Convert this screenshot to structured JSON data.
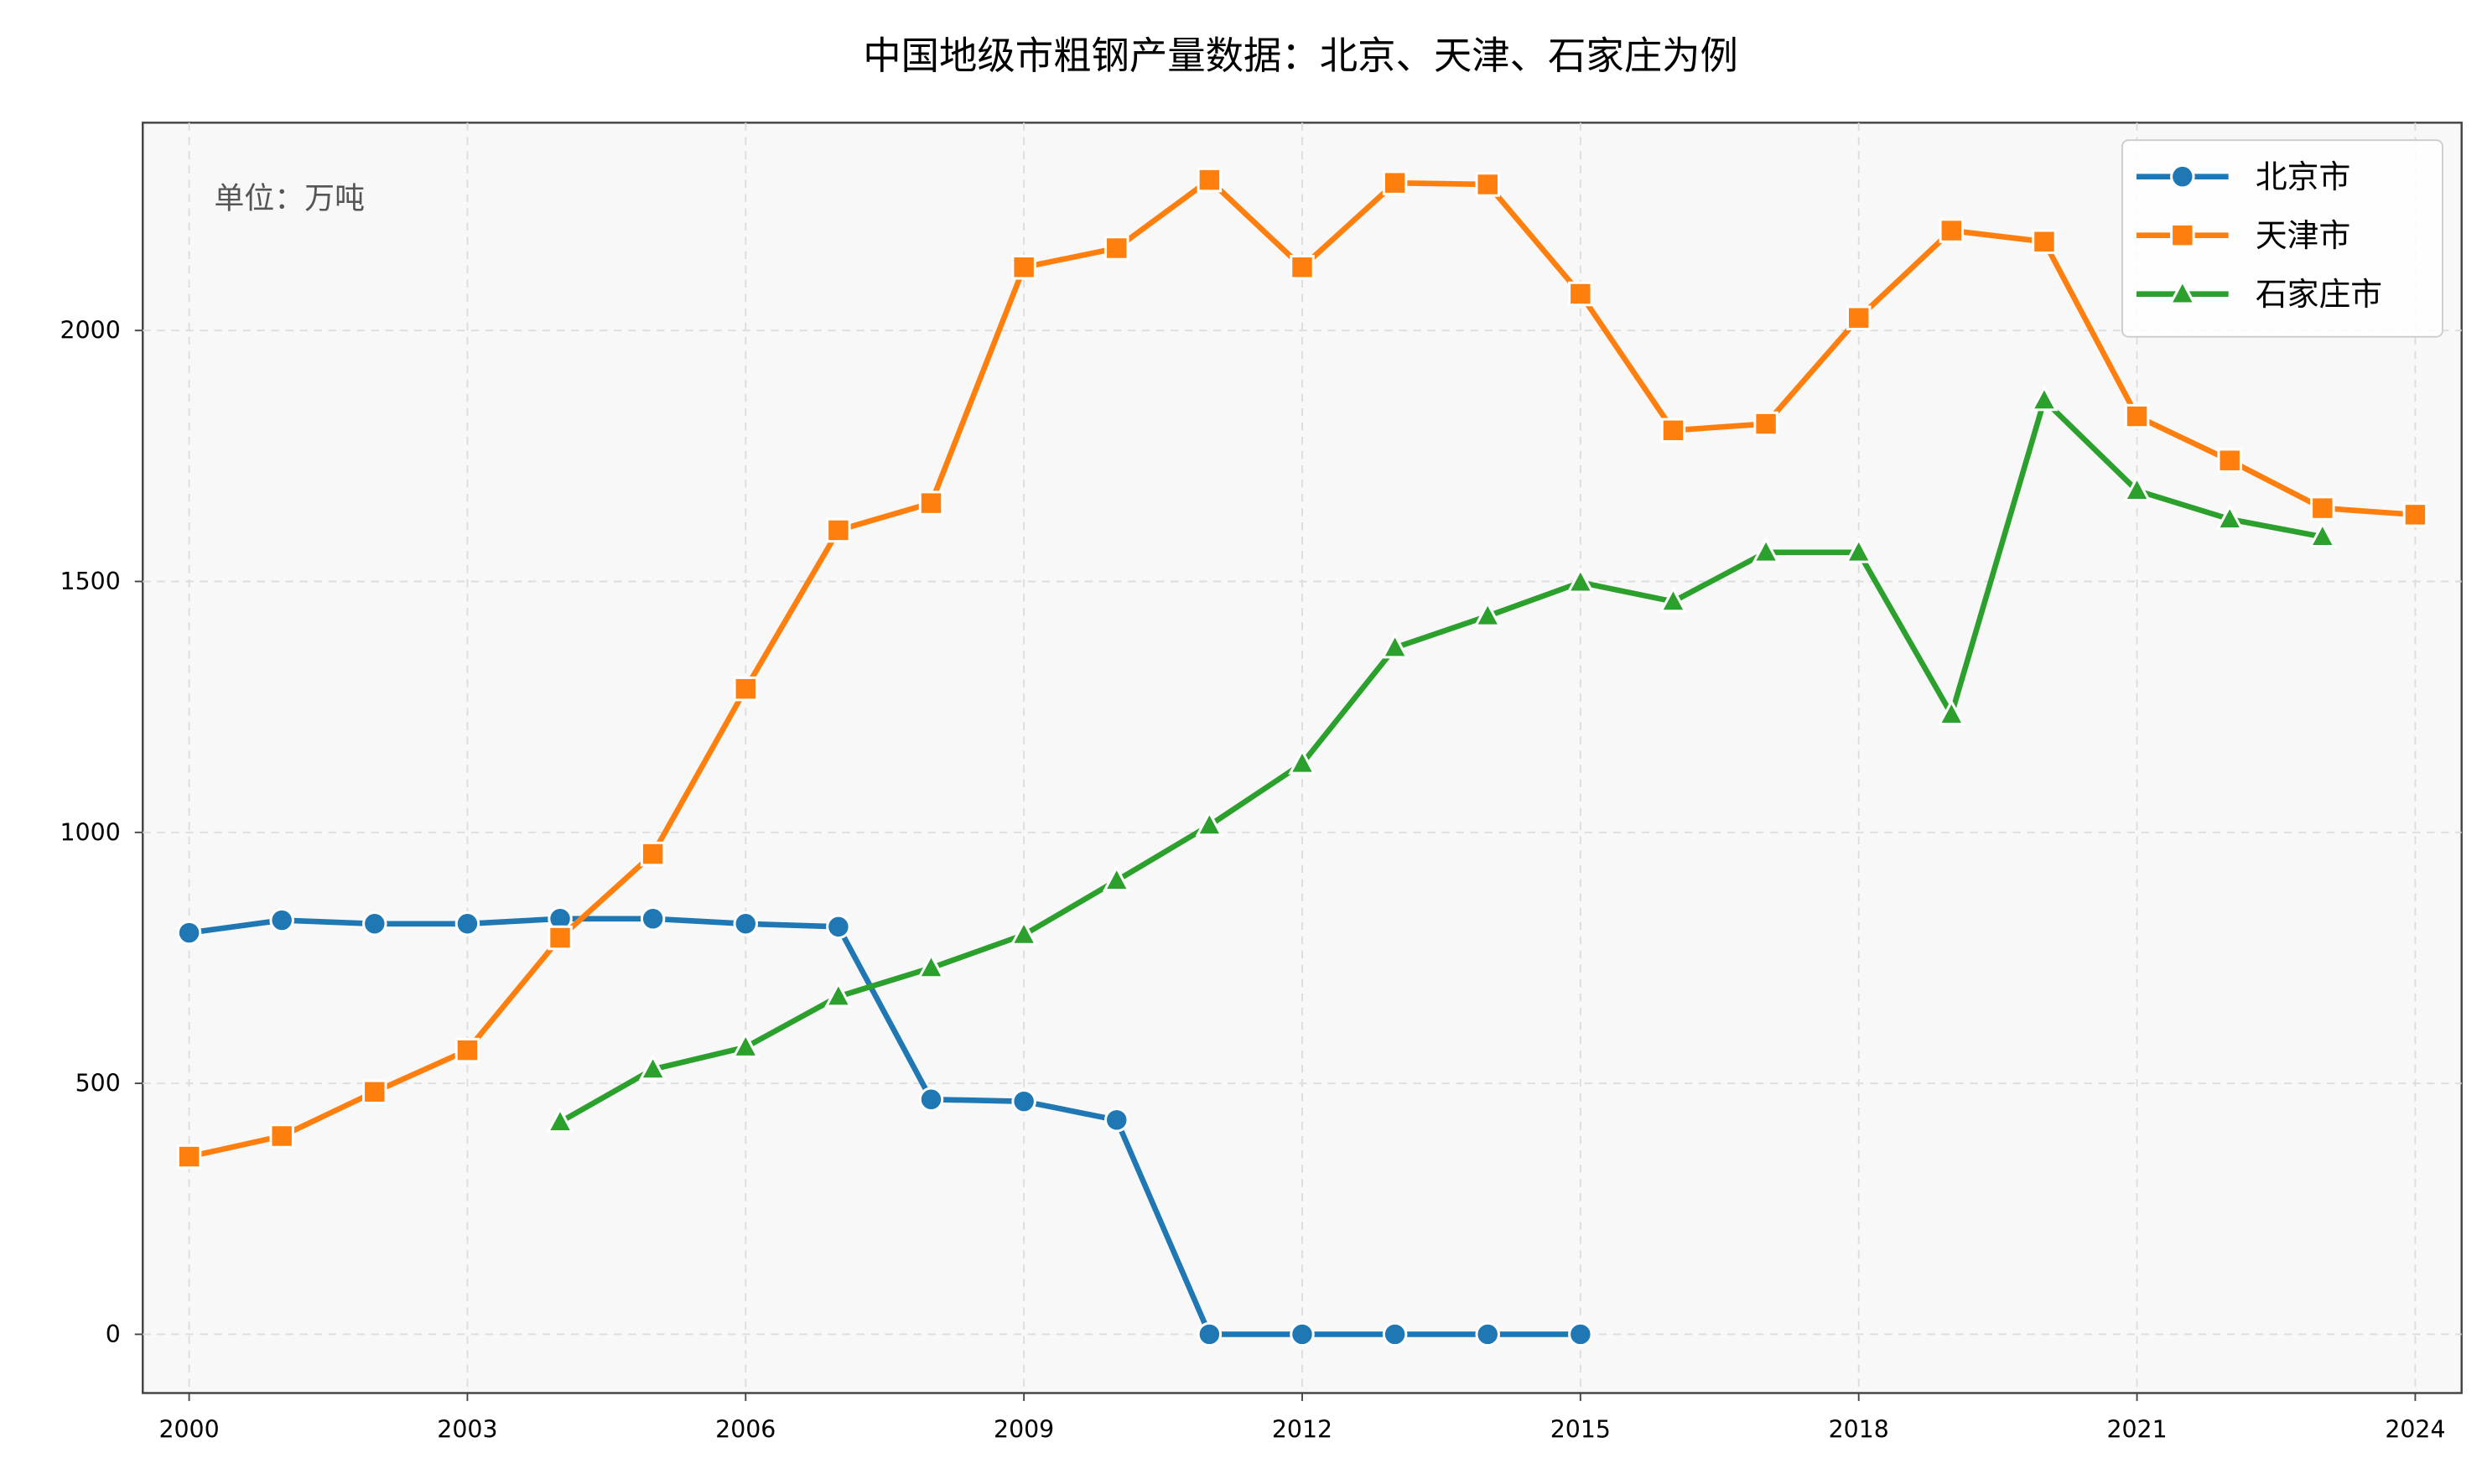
{
  "chart_data": {
    "type": "line",
    "title": "中国地级市粗钢产量数据：北京、天津、石家庄为例",
    "annotation": "单位：万吨",
    "xlabel": "",
    "ylabel": "",
    "xlim": [
      1999.5,
      2024.5
    ],
    "ylim": [
      -117,
      2414
    ],
    "xticks": [
      2000,
      2003,
      2006,
      2009,
      2012,
      2015,
      2018,
      2021,
      2024
    ],
    "yticks": [
      0,
      500,
      1000,
      1500,
      2000
    ],
    "grid": true,
    "legend_position": "top-right",
    "series": [
      {
        "name": "北京市",
        "color": "#1f77b4",
        "marker": "circle",
        "x": [
          2000,
          2001,
          2002,
          2003,
          2004,
          2005,
          2006,
          2007,
          2008,
          2009,
          2010,
          2011,
          2012,
          2013,
          2014,
          2015
        ],
        "y": [
          800,
          825,
          818,
          818,
          828,
          828,
          818,
          812,
          468,
          464,
          427,
          0,
          0,
          0,
          0,
          0
        ]
      },
      {
        "name": "天津市",
        "color": "#ff7f0e",
        "marker": "square",
        "x": [
          2000,
          2001,
          2002,
          2003,
          2004,
          2005,
          2006,
          2007,
          2008,
          2009,
          2010,
          2011,
          2012,
          2013,
          2014,
          2015,
          2016,
          2017,
          2018,
          2019,
          2020,
          2021,
          2022,
          2023,
          2024
        ],
        "y": [
          354,
          395,
          483,
          566,
          790,
          957,
          1286,
          1602,
          1656,
          2126,
          2164,
          2300,
          2126,
          2294,
          2291,
          2073,
          1801,
          1814,
          2025,
          2199,
          2177,
          1829,
          1741,
          1646,
          1633
        ]
      },
      {
        "name": "石家庄市",
        "color": "#2ca02c",
        "marker": "triangle",
        "x": [
          2004,
          2005,
          2006,
          2007,
          2008,
          2009,
          2010,
          2011,
          2012,
          2013,
          2014,
          2015,
          2016,
          2017,
          2018,
          2019,
          2020,
          2021,
          2022,
          2023
        ],
        "y": [
          423,
          528,
          572,
          673,
          730,
          796,
          904,
          1014,
          1137,
          1368,
          1431,
          1498,
          1460,
          1558,
          1558,
          1235,
          1861,
          1681,
          1624,
          1589
        ]
      }
    ]
  }
}
